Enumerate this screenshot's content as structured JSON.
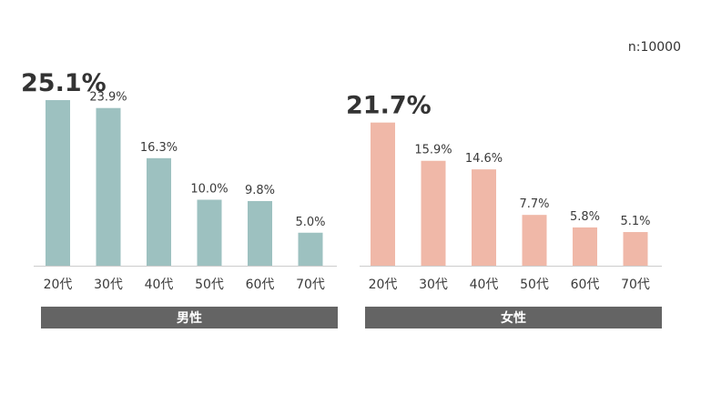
{
  "sample_label": "n:10000",
  "colors": {
    "male": "#9dc1c0",
    "female": "#f0b8a8",
    "group_bar": "#646464",
    "axis": "#cccccc"
  },
  "chart_data": [
    {
      "type": "bar",
      "group_label": "男性",
      "categories": [
        "20代",
        "30代",
        "40代",
        "50代",
        "60代",
        "70代"
      ],
      "values": [
        25.1,
        23.9,
        16.3,
        10.0,
        9.8,
        5.0
      ],
      "value_labels": [
        "25.1%",
        "23.9%",
        "16.3%",
        "10.0%",
        "9.8%",
        "5.0%"
      ],
      "highlight_max": true,
      "color": "#9dc1c0"
    },
    {
      "type": "bar",
      "group_label": "女性",
      "categories": [
        "20代",
        "30代",
        "40代",
        "50代",
        "60代",
        "70代"
      ],
      "values": [
        21.7,
        15.9,
        14.6,
        7.7,
        5.8,
        5.1
      ],
      "value_labels": [
        "21.7%",
        "15.9%",
        "14.6%",
        "7.7%",
        "5.8%",
        "5.1%"
      ],
      "highlight_max": true,
      "color": "#f0b8a8"
    }
  ]
}
